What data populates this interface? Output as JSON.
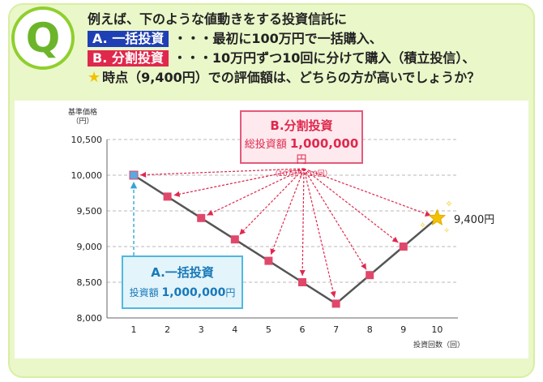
{
  "question": {
    "letter": "Q",
    "line1": "例えば、下のような値動きをする投資信託に",
    "tagA": "A. 一括投資",
    "line2_rest": "・・・最初に100万円で一括購入、",
    "tagB": "B. 分割投資",
    "line3_rest": "・・・10万円ずつ10回に分けて購入（積立投信）、",
    "line4_rest": "時点（9,400円）での評価額は、どちらの方が高いでしょうか？"
  },
  "chart_data": {
    "type": "line",
    "x": [
      1,
      2,
      3,
      4,
      5,
      6,
      7,
      8,
      9,
      10
    ],
    "values": [
      10000,
      9700,
      9400,
      9100,
      8800,
      8500,
      8200,
      8600,
      9000,
      9400
    ],
    "xlabel": "投資回数（回）",
    "ylabel": "基準価格（円）",
    "ylim": [
      8000,
      10500
    ],
    "yticks": [
      8000,
      8500,
      9000,
      9500,
      10000,
      10500
    ],
    "yticklabels": [
      "8,000",
      "8,500",
      "9,000",
      "9,500",
      "10,000",
      "10,500"
    ],
    "xticklabels": [
      "1",
      "2",
      "3",
      "4",
      "5",
      "6",
      "7",
      "8",
      "9",
      "10"
    ],
    "grid": true,
    "colors": {
      "line": "#555555",
      "point": "#e0486b",
      "arrow_b": "#e0284d",
      "arrow_a": "#33a5d6",
      "star": "#f2c200"
    }
  },
  "annotations": {
    "b_title": "B.分割投資",
    "b_amount_prefix": "総投資額",
    "b_amount": "1,000,000",
    "b_amount_unit": "円",
    "b_sub": "（10万円×10回）",
    "a_title": "A.一括投資",
    "a_amount_prefix": "投資額",
    "a_amount": "1,000,000",
    "a_amount_unit": "円",
    "end_label": "9,400円",
    "y_unit_line1": "基準価格",
    "y_unit_line2": "（円）",
    "x_unit": "投資回数（回）"
  }
}
